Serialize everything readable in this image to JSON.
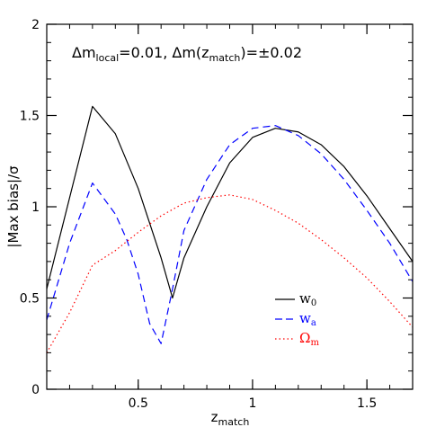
{
  "chart_data": {
    "type": "line",
    "xlabel": "z",
    "xlabel_sub": "match",
    "ylabel": "|Max bias|/σ",
    "xlim": [
      0.1,
      1.7
    ],
    "ylim": [
      0,
      2
    ],
    "x_major_ticks": [
      0.5,
      1,
      1.5
    ],
    "x_tick_labels": [
      "0.5",
      "1",
      "1.5"
    ],
    "y_major_ticks": [
      0,
      0.5,
      1,
      1.5,
      2
    ],
    "y_tick_labels": [
      "0",
      "0.5",
      "1",
      "1.5",
      "2"
    ],
    "annotation": {
      "p1": "Δm",
      "p1_sub": "local",
      "p2": "=0.01,  Δm(z",
      "p2_sub": "match",
      "p3": ")=±0.02"
    },
    "legend_placement": "lower-right",
    "series": [
      {
        "name": "w",
        "name_sub": "0",
        "color": "#000000",
        "style": "solid",
        "x": [
          0.1,
          0.2,
          0.3,
          0.4,
          0.5,
          0.6,
          0.65,
          0.7,
          0.8,
          0.9,
          1.0,
          1.1,
          1.2,
          1.3,
          1.4,
          1.5,
          1.6,
          1.7
        ],
        "y": [
          0.55,
          1.05,
          1.55,
          1.4,
          1.1,
          0.72,
          0.5,
          0.72,
          1.0,
          1.24,
          1.38,
          1.43,
          1.41,
          1.34,
          1.22,
          1.06,
          0.88,
          0.7
        ]
      },
      {
        "name": "w",
        "name_sub": "a",
        "color": "#0000ff",
        "style": "dashed",
        "x": [
          0.1,
          0.2,
          0.3,
          0.4,
          0.45,
          0.5,
          0.55,
          0.6,
          0.65,
          0.7,
          0.8,
          0.9,
          1.0,
          1.1,
          1.2,
          1.3,
          1.4,
          1.5,
          1.6,
          1.7
        ],
        "y": [
          0.38,
          0.8,
          1.13,
          0.96,
          0.82,
          0.63,
          0.36,
          0.25,
          0.55,
          0.87,
          1.15,
          1.34,
          1.43,
          1.445,
          1.39,
          1.29,
          1.15,
          0.98,
          0.8,
          0.59
        ]
      },
      {
        "name": "Ω",
        "name_sub": "m",
        "color": "#ff0000",
        "style": "dotted",
        "x": [
          0.1,
          0.2,
          0.3,
          0.4,
          0.5,
          0.6,
          0.7,
          0.8,
          0.9,
          1.0,
          1.1,
          1.2,
          1.3,
          1.4,
          1.5,
          1.6,
          1.7
        ],
        "y": [
          0.2,
          0.42,
          0.68,
          0.76,
          0.86,
          0.95,
          1.02,
          1.05,
          1.065,
          1.04,
          0.98,
          0.91,
          0.82,
          0.72,
          0.61,
          0.48,
          0.34
        ]
      }
    ]
  }
}
